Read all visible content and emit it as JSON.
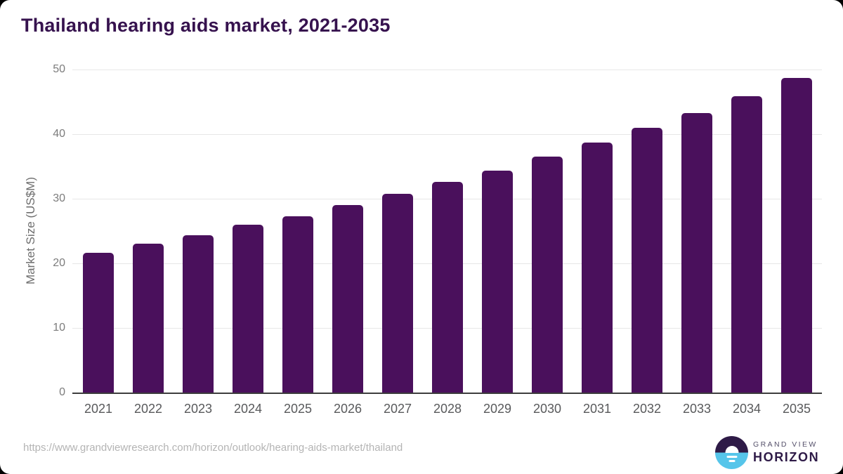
{
  "page": {
    "background_color": "#000000",
    "card_color": "#ffffff"
  },
  "header": {
    "title": "Thailand hearing aids market, 2021-2035",
    "title_color": "#36124e"
  },
  "chart_data": {
    "type": "bar",
    "title": "Thailand hearing aids market, 2021-2035",
    "xlabel": "",
    "ylabel": "Market Size (US$M)",
    "categories": [
      "2021",
      "2022",
      "2023",
      "2024",
      "2025",
      "2026",
      "2027",
      "2028",
      "2029",
      "2030",
      "2031",
      "2032",
      "2033",
      "2034",
      "2035"
    ],
    "values": [
      21.6,
      23.0,
      24.4,
      26.0,
      27.3,
      29.0,
      30.8,
      32.6,
      34.3,
      36.5,
      38.7,
      41.0,
      43.3,
      45.9,
      48.7
    ],
    "ylim": [
      0,
      50
    ],
    "yticks": [
      0,
      10,
      20,
      30,
      40,
      50
    ],
    "grid": "horizontal",
    "legend_position": "none",
    "bar_color": "#4a105c"
  },
  "footer": {
    "source_url": "https://www.grandviewresearch.com/horizon/outlook/hearing-aids-market/thailand"
  },
  "logo": {
    "top_text": "GRAND VIEW",
    "bottom_text": "HORIZON",
    "purple": "#2e1a47",
    "blue": "#56c5ea"
  }
}
